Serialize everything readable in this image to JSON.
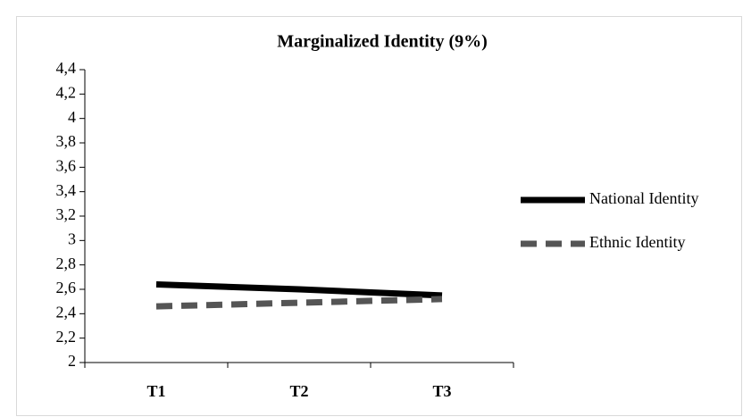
{
  "chart_data": {
    "type": "line",
    "title": "Marginalized Identity (9%)",
    "categories": [
      "T1",
      "T2",
      "T3"
    ],
    "series": [
      {
        "name": "National Identity",
        "color": "#000000",
        "dash": false,
        "values": [
          2.64,
          2.6,
          2.55
        ]
      },
      {
        "name": "Ethnic Identity",
        "color": "#555555",
        "dash": true,
        "values": [
          2.46,
          2.49,
          2.52
        ]
      }
    ],
    "ylim": [
      2,
      4.4
    ],
    "yticks": [
      2,
      {
        "value": 2.2,
        "label": "2,2"
      },
      {
        "value": 2.4,
        "label": "2,4"
      },
      {
        "value": 2.6,
        "label": "2,6"
      },
      {
        "value": 2.8,
        "label": "2,8"
      },
      3,
      {
        "value": 3.2,
        "label": "3,2"
      },
      {
        "value": 3.4,
        "label": "3,4"
      },
      {
        "value": 3.6,
        "label": "3,6"
      },
      {
        "value": 3.8,
        "label": "3,8"
      },
      4,
      {
        "value": 4.2,
        "label": "4,2"
      },
      {
        "value": 4.4,
        "label": "4,4"
      }
    ],
    "grid": false,
    "legend": "right"
  }
}
